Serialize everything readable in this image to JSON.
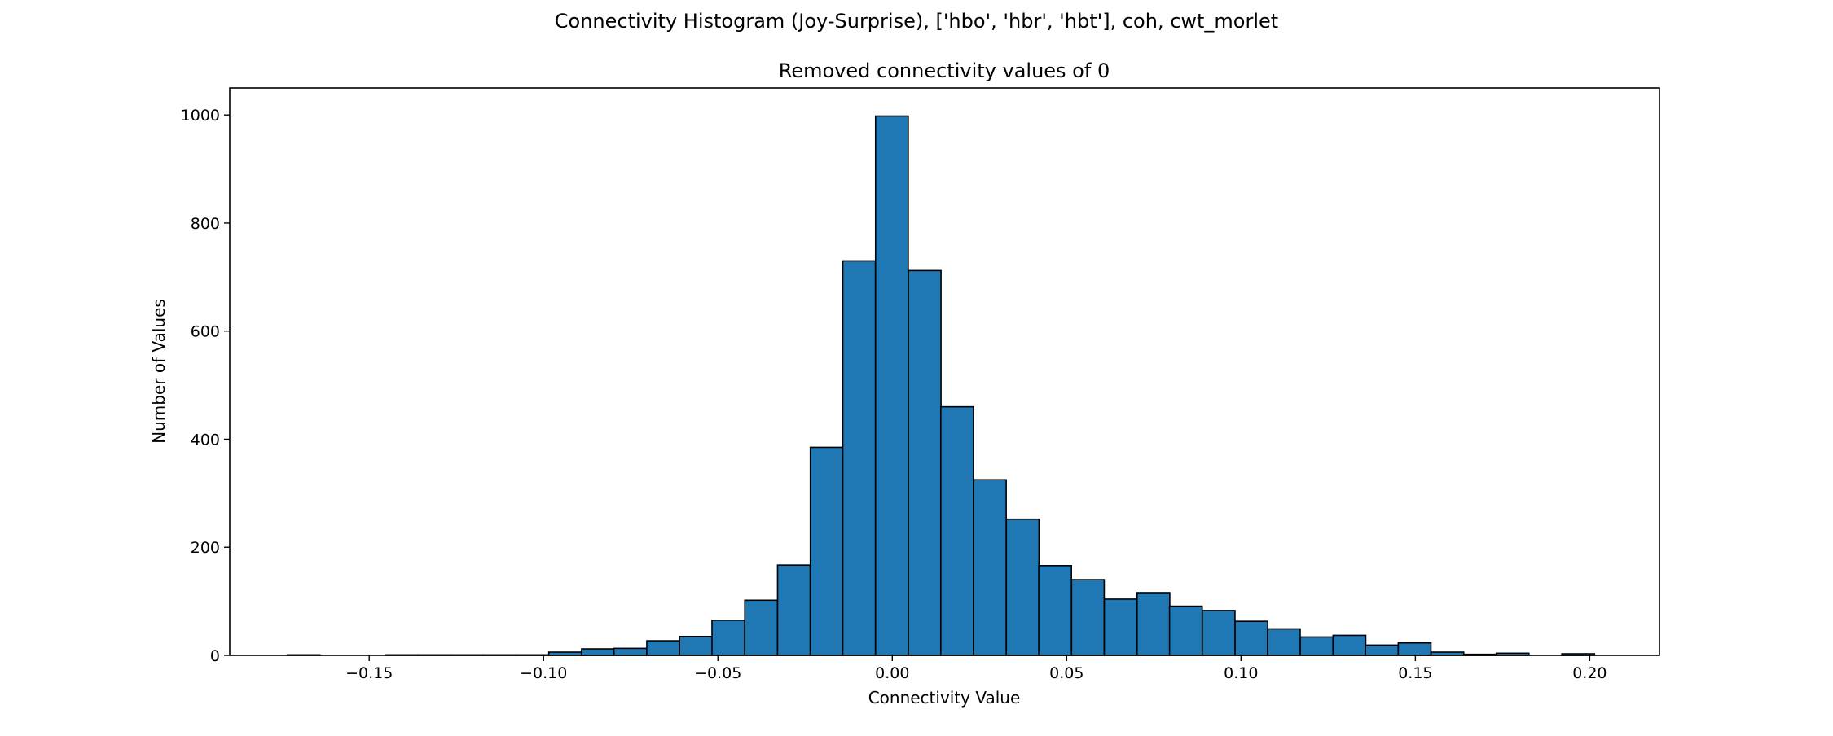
{
  "chart_data": {
    "type": "bar",
    "suptitle": "Connectivity Histogram (Joy-Surprise), ['hbo', 'hbr', 'hbt'], coh, cwt_morlet",
    "title": "Removed connectivity values of 0",
    "xlabel": "Connectivity Value",
    "ylabel": "Number of Values",
    "xlim": [
      -0.19,
      0.22
    ],
    "ylim": [
      0,
      1050
    ],
    "xticks": [
      -0.15,
      -0.1,
      -0.05,
      0.0,
      0.05,
      0.1,
      0.15,
      0.2
    ],
    "xtick_labels": [
      "−0.15",
      "−0.10",
      "−0.05",
      "0.00",
      "0.05",
      "0.10",
      "0.15",
      "0.20"
    ],
    "yticks": [
      0,
      200,
      400,
      600,
      800,
      1000
    ],
    "ytick_labels": [
      "0",
      "200",
      "400",
      "600",
      "800",
      "1000"
    ],
    "bin_width": 0.00937,
    "bins_left": [
      -0.1735,
      -0.1641,
      -0.1547,
      -0.1454,
      -0.136,
      -0.1266,
      -0.1173,
      -0.1079,
      -0.0985,
      -0.0891,
      -0.0798,
      -0.0704,
      -0.061,
      -0.0517,
      -0.0423,
      -0.0329,
      -0.0235,
      -0.0142,
      -0.0048,
      0.0046,
      0.0139,
      0.0233,
      0.0327,
      0.042,
      0.0514,
      0.0608,
      0.0702,
      0.0795,
      0.0889,
      0.0983,
      0.1076,
      0.117,
      0.1264,
      0.1357,
      0.1451,
      0.1545,
      0.1639,
      0.1732,
      0.1826,
      0.192
    ],
    "counts": [
      1,
      0,
      0,
      1,
      1,
      1,
      1,
      1,
      6,
      12,
      13,
      27,
      35,
      65,
      102,
      167,
      385,
      730,
      998,
      712,
      460,
      325,
      252,
      166,
      140,
      104,
      116,
      91,
      83,
      63,
      49,
      34,
      37,
      19,
      23,
      6,
      2,
      4,
      0,
      3
    ],
    "bar_color": "#1f77b4",
    "edge_color": "#000000",
    "grid": false,
    "legend": false
  }
}
